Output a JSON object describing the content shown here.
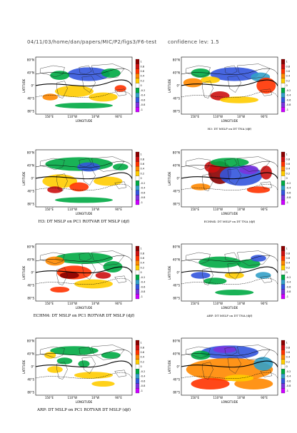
{
  "header": {
    "path": "04/11/03/home/dan/papers/MIC/P2/figs3/F6-test",
    "confidence": "confidence lev: 1.5"
  },
  "axes": {
    "ylabel": "LATITUDE",
    "xlabel": "LONGITUDE",
    "lat_ticks": [
      "80°N",
      "40°N",
      "0°",
      "40°S",
      "80°S"
    ],
    "lon_ticks": [
      "150°E",
      "110°W",
      "10°W",
      "90°E"
    ]
  },
  "colorbar": {
    "labels": [
      "1",
      "0.8",
      "0.6",
      "0.4",
      "0.2",
      "0",
      "-0.2",
      "-0.4",
      "-0.6",
      "-0.8",
      "-1"
    ],
    "colors": [
      "#8b0000",
      "#cc1111",
      "#ff3300",
      "#ff8800",
      "#ffcc00",
      "#ffffff",
      "#00aa44",
      "#33a0c8",
      "#3355dd",
      "#7a33dd",
      "#cc00ff"
    ]
  },
  "panels": [
    {
      "id": "p1",
      "caption": ""
    },
    {
      "id": "p2",
      "caption": "H3: DT MSLP on DT TNA (djf)"
    },
    {
      "id": "p3",
      "caption": "H3: DT MSLP on PC1 ROTVAR DT MSLP (djf)"
    },
    {
      "id": "p4",
      "caption": "ECHM4: DT MSLP on DT TNA (djf)"
    },
    {
      "id": "p5",
      "caption": "ECHM4: DT MSLP on PC1 ROTVAR DT MSLP (djf)"
    },
    {
      "id": "p6",
      "caption": "ARP: DT MSLP on DT TNA (djf)"
    },
    {
      "id": "p7",
      "caption": "ARP: DT MSLP on PC1 ROTVAR DT MSLP (djf)"
    },
    {
      "id": "p8",
      "caption": ""
    }
  ],
  "chart_data": {
    "type": "heatmap",
    "panels": 8,
    "layout": "4 rows x 2 columns",
    "value_range": [
      -1,
      1
    ],
    "colorbar_ticks": [
      1,
      0.8,
      0.6,
      0.4,
      0.2,
      0,
      -0.2,
      -0.4,
      -0.6,
      -0.8,
      -1
    ]
  }
}
